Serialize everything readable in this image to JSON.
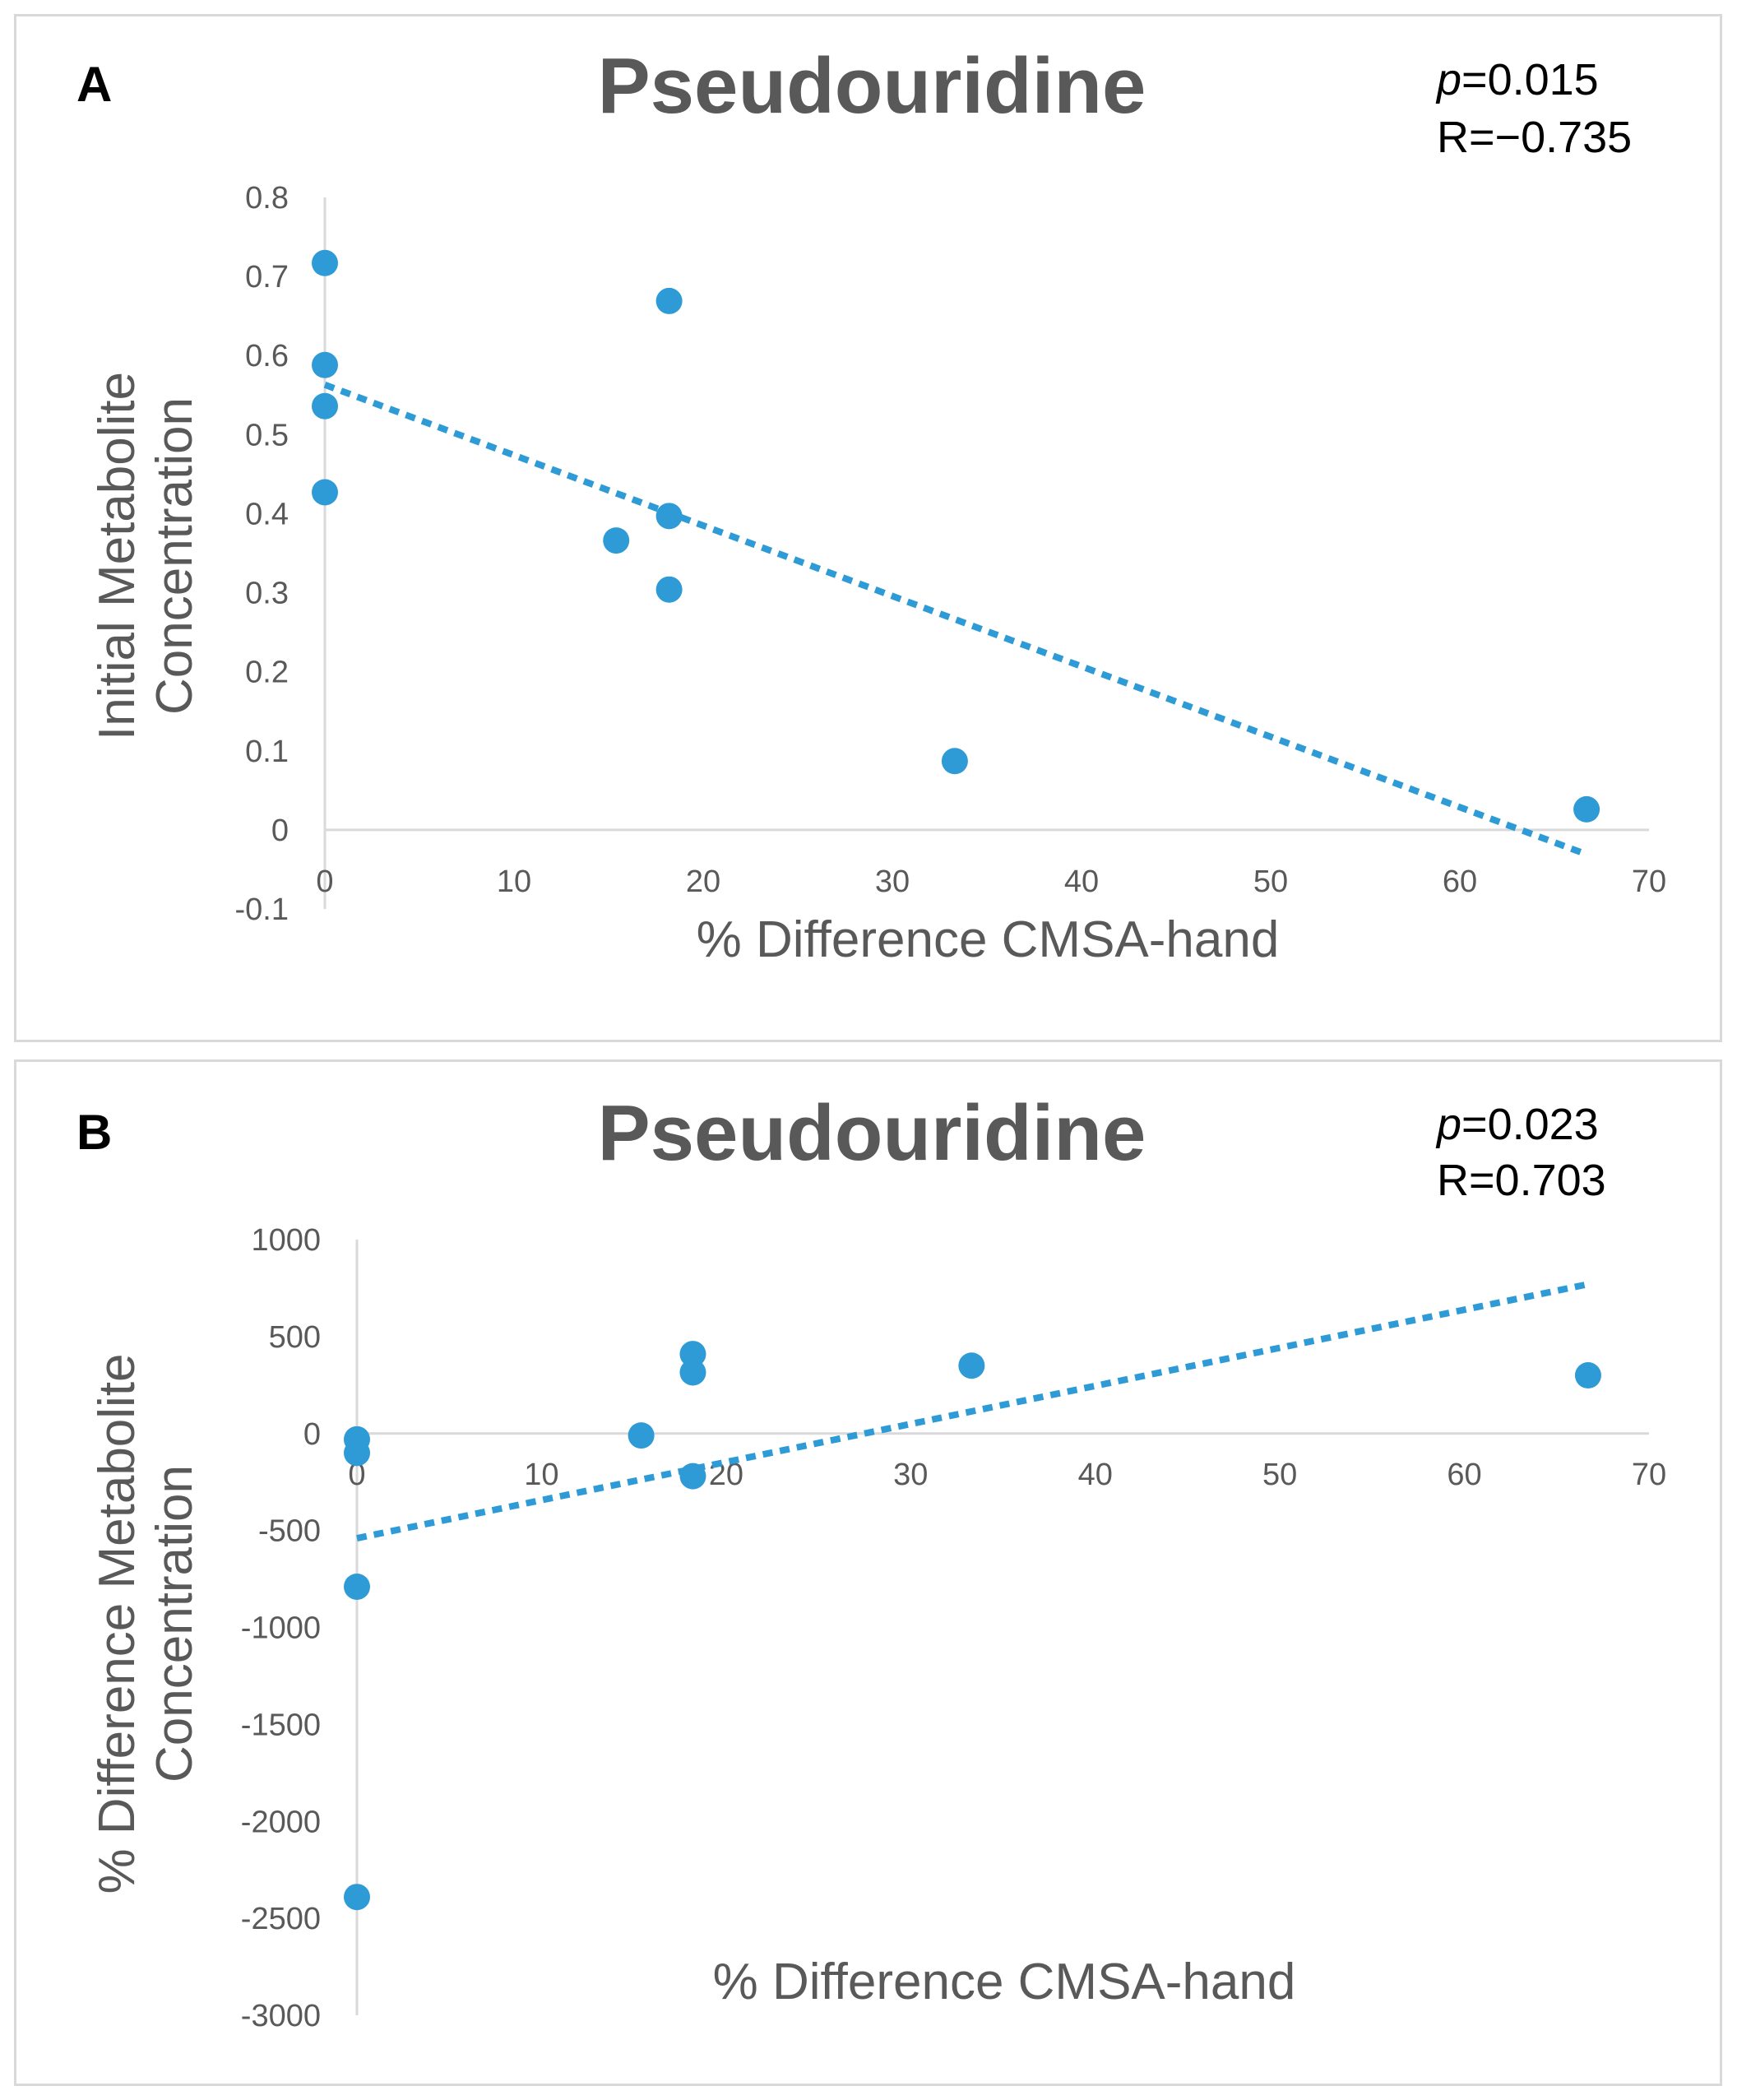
{
  "chart_data": [
    {
      "panel_label": "A",
      "type": "scatter",
      "title": "Pseudouridine",
      "stats": {
        "p_label": "p",
        "p_value": "=0.015",
        "r_text": "R=−0.735"
      },
      "xlabel": "% Difference CMSA-hand",
      "ylabel_lines": [
        "Initial Metabolite",
        "Concentration"
      ],
      "xlim": [
        0,
        70
      ],
      "ylim": [
        -0.1,
        0.8
      ],
      "x_ticks": [
        "0",
        "10",
        "20",
        "30",
        "40",
        "50",
        "60",
        "70"
      ],
      "y_ticks": [
        "-0.1",
        "0",
        "0.1",
        "0.2",
        "0.3",
        "0.4",
        "0.5",
        "0.6",
        "0.7",
        "0.8"
      ],
      "x_tick_values": [
        0,
        10,
        20,
        30,
        40,
        50,
        60,
        70
      ],
      "y_tick_values": [
        -0.1,
        0,
        0.1,
        0.2,
        0.3,
        0.4,
        0.5,
        0.6,
        0.7,
        0.8
      ],
      "points": [
        {
          "x": 0,
          "y": 0.717
        },
        {
          "x": 0,
          "y": 0.588
        },
        {
          "x": 0,
          "y": 0.536
        },
        {
          "x": 0,
          "y": 0.427
        },
        {
          "x": 18.2,
          "y": 0.669
        },
        {
          "x": 18.2,
          "y": 0.397
        },
        {
          "x": 15.4,
          "y": 0.366
        },
        {
          "x": 18.2,
          "y": 0.304
        },
        {
          "x": 33.3,
          "y": 0.087
        },
        {
          "x": 66.7,
          "y": 0.026
        }
      ],
      "trendline": {
        "x": [
          0,
          66.7
        ],
        "y": [
          0.563,
          -0.031
        ]
      }
    },
    {
      "panel_label": "B",
      "type": "scatter",
      "title": "Pseudouridine",
      "stats": {
        "p_label": "p",
        "p_value": "=0.023",
        "r_text": "R=0.703"
      },
      "xlabel": "% Difference CMSA-hand",
      "ylabel_lines": [
        "% Difference  Metabolite",
        "Concentration"
      ],
      "xlim": [
        0,
        70
      ],
      "ylim": [
        -3000,
        1000
      ],
      "x_ticks": [
        "0",
        "10",
        "20",
        "30",
        "40",
        "50",
        "60",
        "70"
      ],
      "y_ticks": [
        "-3000",
        "-2500",
        "-2000",
        "-1500",
        "-1000",
        "-500",
        "0",
        "500",
        "1000"
      ],
      "x_tick_values": [
        0,
        10,
        20,
        30,
        40,
        50,
        60,
        70
      ],
      "y_tick_values": [
        -3000,
        -2500,
        -2000,
        -1500,
        -1000,
        -500,
        0,
        500,
        1000
      ],
      "points": [
        {
          "x": 0,
          "y": -30
        },
        {
          "x": 0,
          "y": -100
        },
        {
          "x": 0,
          "y": -790
        },
        {
          "x": 0,
          "y": -2390
        },
        {
          "x": 15.4,
          "y": -10
        },
        {
          "x": 18.2,
          "y": 410
        },
        {
          "x": 18.2,
          "y": 315
        },
        {
          "x": 18.2,
          "y": -220
        },
        {
          "x": 33.3,
          "y": 350
        },
        {
          "x": 66.7,
          "y": 300
        }
      ],
      "trendline": {
        "x": [
          0,
          66.7
        ],
        "y": [
          -540,
          770
        ]
      }
    }
  ]
}
